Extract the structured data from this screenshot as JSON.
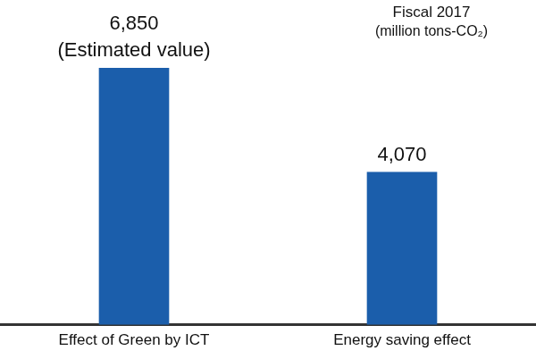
{
  "chart_data": {
    "type": "bar",
    "title": "Fiscal 2017",
    "subtitle": "(million tons-CO₂)",
    "categories": [
      "Effect of Green by ICT",
      "Energy saving effect"
    ],
    "values": [
      6850,
      4070
    ],
    "value_labels": [
      "6,850",
      "4,070"
    ],
    "data_labels": true,
    "annotations": [
      {
        "category": "Effect of Green by ICT",
        "text": "(Estimated value)"
      }
    ],
    "color": "#1b5eab",
    "ylim": [
      0,
      8000
    ],
    "grid": false,
    "tick_labels": "x"
  }
}
